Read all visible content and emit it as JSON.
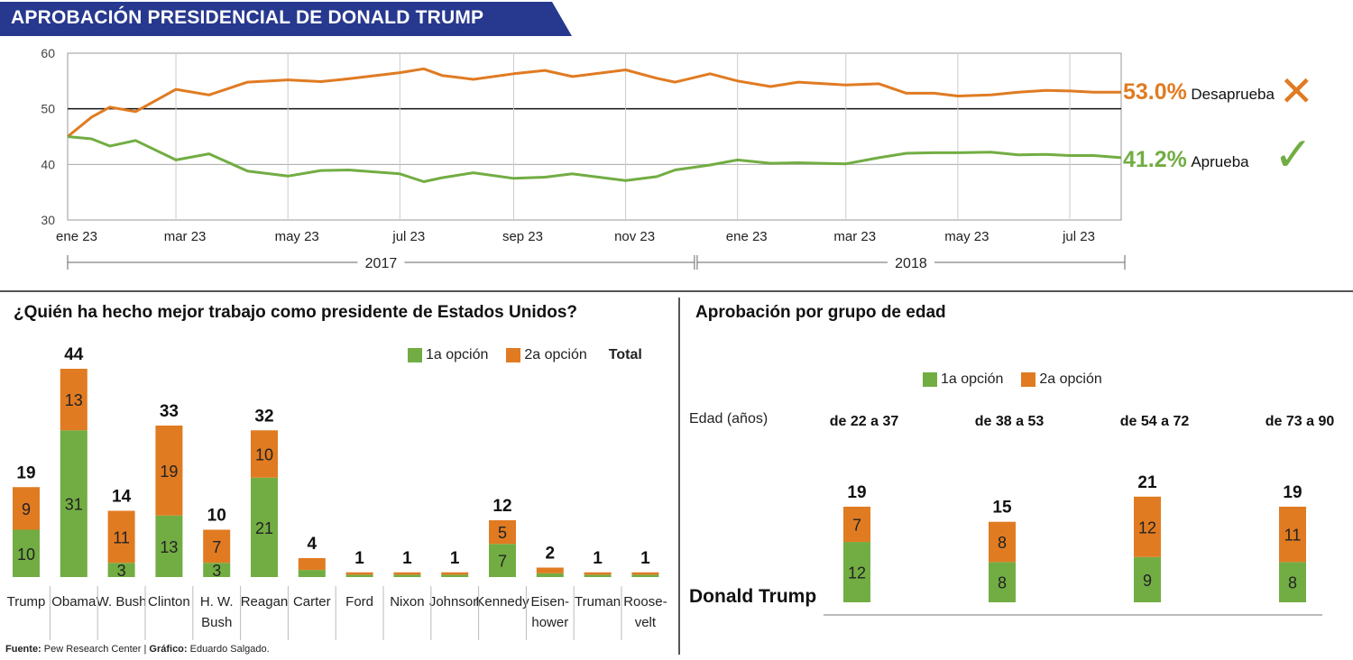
{
  "header": {
    "title": "APROBACIÓN PRESIDENCIAL DE DONALD TRUMP"
  },
  "colors": {
    "orange": "#e07b22",
    "green": "#72ad43",
    "banner": "#27388f",
    "axis": "#888888"
  },
  "chart_data": [
    {
      "type": "line",
      "title": "",
      "ylim": [
        30,
        60
      ],
      "y_ticks": [
        "30",
        "40",
        "50",
        "60"
      ],
      "x_ticks": [
        "ene 23",
        "mar 23",
        "may 23",
        "jul 23",
        "sep 23",
        "nov 23",
        "ene 23",
        "mar 23",
        "may 23",
        "jul 23"
      ],
      "years": [
        "2017",
        "2018"
      ],
      "x": [
        "2017-01-23",
        "2017-02-05",
        "2017-02-15",
        "2017-03-01",
        "2017-03-23",
        "2017-04-10",
        "2017-05-01",
        "2017-05-23",
        "2017-06-10",
        "2017-06-25",
        "2017-07-23",
        "2017-08-05",
        "2017-08-15",
        "2017-09-01",
        "2017-09-23",
        "2017-10-10",
        "2017-10-25",
        "2017-11-23",
        "2017-12-10",
        "2017-12-20",
        "2018-01-08",
        "2018-01-23",
        "2018-02-10",
        "2018-02-25",
        "2018-03-23",
        "2018-04-10",
        "2018-04-25",
        "2018-05-10",
        "2018-05-23",
        "2018-06-10",
        "2018-06-25",
        "2018-07-10",
        "2018-07-23",
        "2018-08-05",
        "2018-08-20"
      ],
      "series": [
        {
          "name": "Desaprueba",
          "values": [
            45,
            48.5,
            50.3,
            49.5,
            53.5,
            52.5,
            54.8,
            55.2,
            54.9,
            55.4,
            56.5,
            57.2,
            56.0,
            55.3,
            56.3,
            56.9,
            55.8,
            57.0,
            55.5,
            54.8,
            56.3,
            55.0,
            54.0,
            54.8,
            54.3,
            54.5,
            52.8,
            52.8,
            52.3,
            52.5,
            53.0,
            53.3,
            53.2,
            53.0,
            53.0
          ]
        },
        {
          "name": "Aprueba",
          "values": [
            45,
            44.6,
            43.3,
            44.3,
            40.8,
            41.9,
            38.8,
            37.9,
            38.9,
            39.0,
            38.3,
            36.9,
            37.6,
            38.5,
            37.5,
            37.7,
            38.3,
            37.1,
            37.8,
            39.0,
            39.9,
            40.8,
            40.2,
            40.3,
            40.1,
            41.2,
            42.0,
            42.1,
            42.1,
            42.2,
            41.7,
            41.8,
            41.6,
            41.6,
            41.2
          ]
        }
      ],
      "end_labels": {
        "Desaprueba": "53.0%",
        "Aprueba": "41.2%"
      },
      "markers": {
        "Desaprueba": "✕",
        "Aprueba": "✓"
      }
    },
    {
      "type": "bar",
      "title": "¿Quién ha hecho mejor trabajo como presidente de Estados Unidos?",
      "legend": {
        "first": "1a opción",
        "second": "2a opción",
        "total": "Total"
      },
      "categories": [
        "Trump",
        "Obama",
        "W. Bush",
        "Clinton",
        "H. W. Bush",
        "Reagan",
        "Carter",
        "Ford",
        "Nixon",
        "Johnson",
        "Kennedy",
        "Eisen- hower",
        "Truman",
        "Roose- velt"
      ],
      "series": [
        {
          "name": "1a opción",
          "values": [
            10,
            31,
            3,
            13,
            3,
            21,
            1.5,
            0.5,
            0.5,
            0.5,
            7,
            0.8,
            0.5,
            0.5
          ]
        },
        {
          "name": "2a opción",
          "values": [
            9,
            13,
            11,
            19,
            7,
            10,
            2.5,
            0.5,
            0.5,
            0.5,
            5,
            1.2,
            0.5,
            0.5
          ]
        }
      ],
      "segment_labels": {
        "first": [
          "10",
          "31",
          "3",
          "13",
          "3",
          "21",
          "",
          "",
          "",
          "",
          "7",
          "",
          "",
          ""
        ],
        "second": [
          "9",
          "13",
          "11",
          "19",
          "7",
          "10",
          "",
          "",
          "",
          "",
          "5",
          "",
          "",
          ""
        ]
      },
      "totals": [
        "19",
        "44",
        "14",
        "33",
        "10",
        "32",
        "4",
        "1",
        "1",
        "1",
        "12",
        "2",
        "1",
        "1"
      ]
    },
    {
      "type": "bar",
      "title": "Aprobación por grupo de edad",
      "legend": {
        "first": "1a opción",
        "second": "2a opción"
      },
      "axis_label": "Edad (años)",
      "row_label": "Donald Trump",
      "categories": [
        "de 22 a 37",
        "de 38 a 53",
        "de 54 a 72",
        "de 73 a 90"
      ],
      "series": [
        {
          "name": "1a opción",
          "values": [
            12,
            8,
            9,
            8
          ]
        },
        {
          "name": "2a opción",
          "values": [
            7,
            8,
            12,
            11
          ]
        }
      ],
      "segment_labels": {
        "first": [
          "12",
          "8",
          "9",
          "8"
        ],
        "second": [
          "7",
          "8",
          "12",
          "11"
        ]
      },
      "totals": [
        "19",
        "15",
        "21",
        "19"
      ]
    }
  ],
  "footer": {
    "source_label": "Fuente:",
    "source_text": "Pew Research Center |",
    "credit_label": "Gráfico:",
    "credit_text": "Eduardo Salgado."
  }
}
